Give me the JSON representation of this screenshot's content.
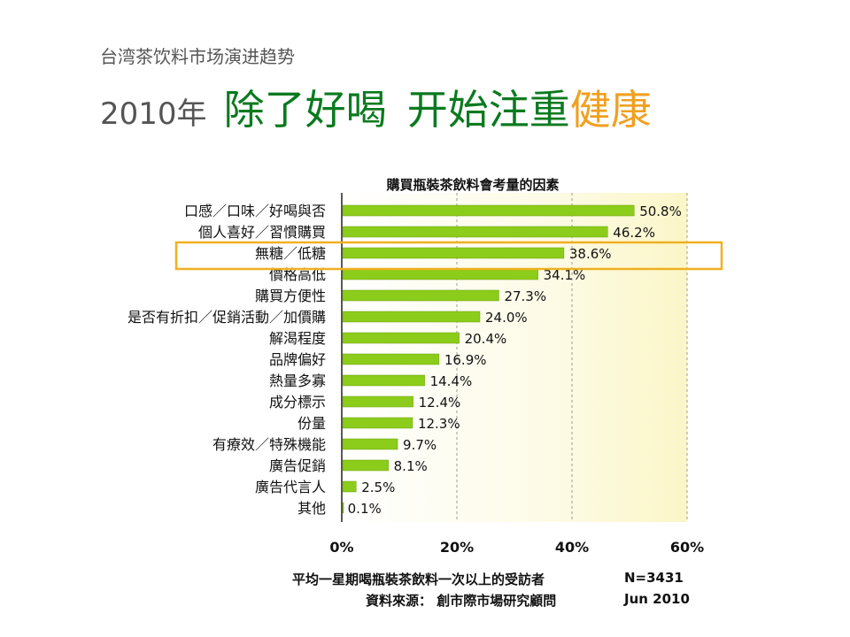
{
  "slide": {
    "subtitle": "台湾茶饮料市场演进趋势",
    "headline_year": "2010年",
    "headline_part1": "除了好喝",
    "headline_part2": "开始注重",
    "headline_highlight": "健康"
  },
  "colors": {
    "bar": "#8ccc1a",
    "bar_border": "#6aa010",
    "highlight_box": "#f0b020",
    "headline_green": "#0b7a1f",
    "headline_orange": "#f0a020"
  },
  "chart_data": {
    "type": "bar",
    "orientation": "horizontal",
    "title": "購買瓶裝茶飲料會考量的因素",
    "categories": [
      "口感／口味／好喝與否",
      "個人喜好／習慣購買",
      "無糖／低糖",
      "價格高低",
      "購買方便性",
      "是否有折扣／促銷活動／加價購",
      "解渴程度",
      "品牌偏好",
      "熱量多寡",
      "成分標示",
      "份量",
      "有療效／特殊機能",
      "廣告促銷",
      "廣告代言人",
      "其他"
    ],
    "values": [
      50.8,
      46.2,
      38.6,
      34.1,
      27.3,
      24.0,
      20.4,
      16.9,
      14.4,
      12.4,
      12.3,
      9.7,
      8.1,
      2.5,
      0.1
    ],
    "value_labels": [
      "50.8%",
      "46.2%",
      "38.6%",
      "34.1%",
      "27.3%",
      "24.0%",
      "20.4%",
      "16.9%",
      "14.4%",
      "12.4%",
      "12.3%",
      "9.7%",
      "8.1%",
      "2.5%",
      "0.1%"
    ],
    "xlim": [
      0,
      60
    ],
    "x_ticks": [
      0,
      20,
      40,
      60
    ],
    "x_tick_labels": [
      "0%",
      "20%",
      "40%",
      "60%"
    ],
    "highlighted_category": "無糖／低糖",
    "grid": true,
    "footnote_1": "平均一星期喝瓶裝茶飲料一次以上的受訪者",
    "sample_size": "N=3431",
    "source": "資料來源： 創市際市場研究顧問",
    "source_date": "Jun 2010"
  }
}
